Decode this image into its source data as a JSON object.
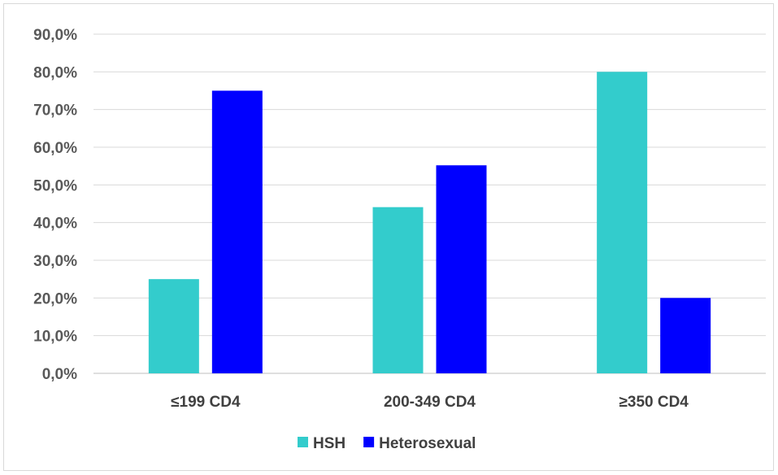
{
  "chart_data": {
    "type": "bar",
    "categories": [
      "≤199 CD4",
      "200-349 CD4",
      "≥350 CD4"
    ],
    "series": [
      {
        "name": "HSH",
        "values": [
          25.0,
          44.1,
          80.0
        ],
        "color": "#33CCCC"
      },
      {
        "name": "Heterosexual",
        "values": [
          75.0,
          55.2,
          20.0
        ],
        "color": "#0000FF"
      }
    ],
    "ylim": [
      0,
      90
    ],
    "yticks": [
      "0,0%",
      "10,0%",
      "20,0%",
      "30,0%",
      "40,0%",
      "50,0%",
      "60,0%",
      "70,0%",
      "80,0%",
      "90,0%"
    ],
    "grid": true,
    "legend": "bottom"
  }
}
